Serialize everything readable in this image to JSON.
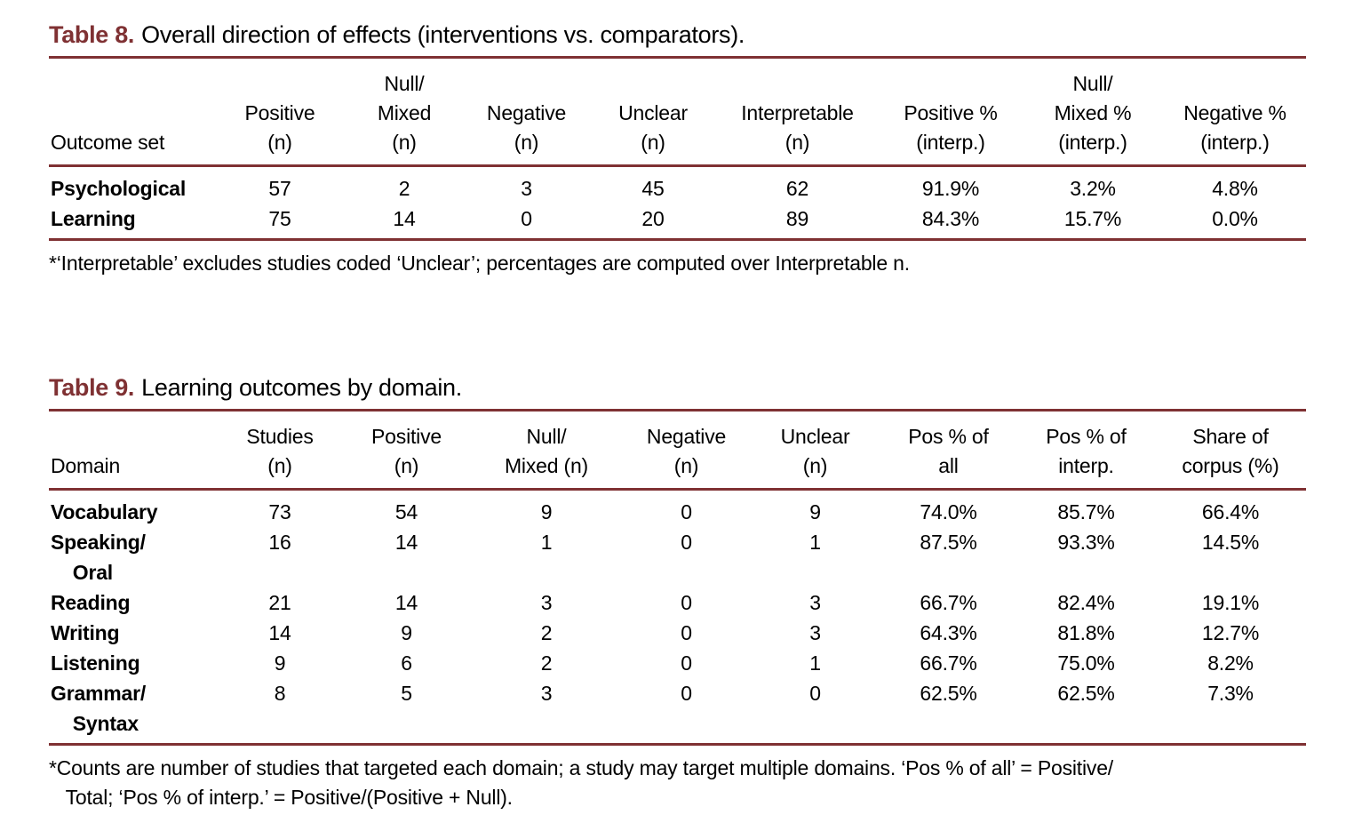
{
  "page": {
    "accent_color": "#7f3133",
    "background_color": "#ffffff"
  },
  "table8": {
    "label": "Table 8.",
    "title": "Overall direction of effects (interventions vs. comparators).",
    "headers": [
      "Outcome set",
      "Positive\n(n)",
      "Null/\nMixed\n(n)",
      "Negative\n(n)",
      "Unclear\n(n)",
      "Interpretable\n(n)",
      "Positive %\n(interp.)",
      "Null/\nMixed %\n(interp.)",
      "Negative %\n(interp.)"
    ],
    "rows": [
      {
        "label": "Psychological",
        "values": [
          "57",
          "2",
          "3",
          "45",
          "62",
          "91.9%",
          "3.2%",
          "4.8%"
        ]
      },
      {
        "label": "Learning",
        "values": [
          "75",
          "14",
          "0",
          "20",
          "89",
          "84.3%",
          "15.7%",
          "0.0%"
        ]
      }
    ],
    "footnote": "*‘Interpretable’ excludes studies coded ‘Unclear’; percentages are computed over Interpretable n."
  },
  "table9": {
    "label": "Table 9.",
    "title": "Learning outcomes by domain.",
    "headers": [
      "Domain",
      "Studies\n(n)",
      "Positive\n(n)",
      "Null/\nMixed (n)",
      "Negative\n(n)",
      "Unclear\n(n)",
      "Pos % of\nall",
      "Pos % of\ninterp.",
      "Share of\ncorpus (%)"
    ],
    "rows": [
      {
        "label": "Vocabulary",
        "values": [
          "73",
          "54",
          "9",
          "0",
          "9",
          "74.0%",
          "85.7%",
          "66.4%"
        ]
      },
      {
        "label": "Speaking/\n    Oral",
        "values": [
          "16",
          "14",
          "1",
          "0",
          "1",
          "87.5%",
          "93.3%",
          "14.5%"
        ]
      },
      {
        "label": "Reading",
        "values": [
          "21",
          "14",
          "3",
          "0",
          "3",
          "66.7%",
          "82.4%",
          "19.1%"
        ]
      },
      {
        "label": "Writing",
        "values": [
          "14",
          "9",
          "2",
          "0",
          "3",
          "64.3%",
          "81.8%",
          "12.7%"
        ]
      },
      {
        "label": "Listening",
        "values": [
          "9",
          "6",
          "2",
          "0",
          "1",
          "66.7%",
          "75.0%",
          "8.2%"
        ]
      },
      {
        "label": "Grammar/\n    Syntax",
        "values": [
          "8",
          "5",
          "3",
          "0",
          "0",
          "62.5%",
          "62.5%",
          "7.3%"
        ]
      }
    ],
    "footnote": "*Counts are number of studies that targeted each domain; a study may target multiple domains. ‘Pos % of all’ = Positive/\n   Total; ‘Pos % of interp.’ = Positive/(Positive + Null)."
  }
}
